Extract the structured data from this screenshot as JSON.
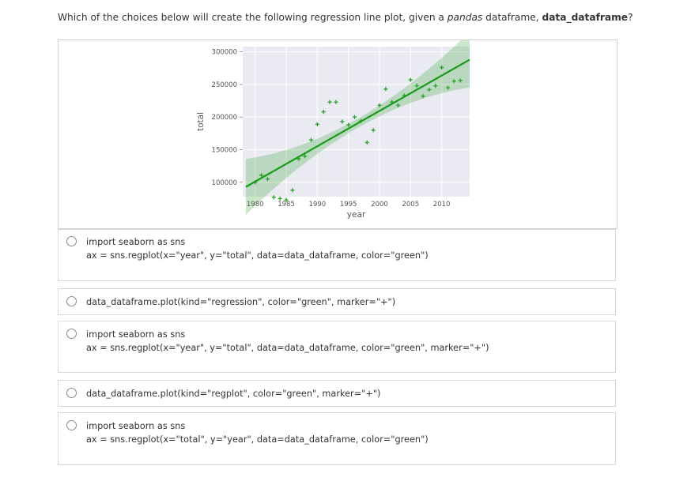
{
  "question": {
    "part1": "Which of the choices below will create the following regression line plot, given a ",
    "em": "pandas",
    "part2": " dataframe, ",
    "bold": "data_dataframe",
    "part3": "?"
  },
  "chart_data": {
    "type": "scatter",
    "xlabel": "year",
    "ylabel": "total",
    "xticks": [
      1980,
      1985,
      1990,
      1995,
      2000,
      2005,
      2010
    ],
    "yticks": [
      100000,
      150000,
      200000,
      250000,
      300000
    ],
    "xlim": [
      1978,
      2014.5
    ],
    "ylim": [
      78000,
      308000
    ],
    "marker": "+",
    "color": "#2ca02c",
    "regression_line": {
      "x": [
        1978.5,
        2014.5
      ],
      "y": [
        93000,
        288000
      ]
    },
    "points": [
      {
        "x": 1980,
        "y": 100000
      },
      {
        "x": 1981,
        "y": 111000
      },
      {
        "x": 1982,
        "y": 105000
      },
      {
        "x": 1983,
        "y": 77000
      },
      {
        "x": 1984,
        "y": 75000
      },
      {
        "x": 1985,
        "y": 73000
      },
      {
        "x": 1986,
        "y": 88000
      },
      {
        "x": 1987,
        "y": 136000
      },
      {
        "x": 1988,
        "y": 140000
      },
      {
        "x": 1989,
        "y": 165000
      },
      {
        "x": 1990,
        "y": 189000
      },
      {
        "x": 1991,
        "y": 208000
      },
      {
        "x": 1992,
        "y": 223000
      },
      {
        "x": 1993,
        "y": 223000
      },
      {
        "x": 1994,
        "y": 193000
      },
      {
        "x": 1995,
        "y": 188000
      },
      {
        "x": 1996,
        "y": 200000
      },
      {
        "x": 1997,
        "y": 194000
      },
      {
        "x": 1998,
        "y": 161000
      },
      {
        "x": 1999,
        "y": 180000
      },
      {
        "x": 2000,
        "y": 218000
      },
      {
        "x": 2001,
        "y": 243000
      },
      {
        "x": 2002,
        "y": 223000
      },
      {
        "x": 2003,
        "y": 218000
      },
      {
        "x": 2004,
        "y": 233000
      },
      {
        "x": 2005,
        "y": 257000
      },
      {
        "x": 2006,
        "y": 248000
      },
      {
        "x": 2007,
        "y": 232000
      },
      {
        "x": 2008,
        "y": 242000
      },
      {
        "x": 2009,
        "y": 248000
      },
      {
        "x": 2010,
        "y": 276000
      },
      {
        "x": 2011,
        "y": 245000
      },
      {
        "x": 2012,
        "y": 255000
      },
      {
        "x": 2013,
        "y": 256000
      }
    ]
  },
  "options": [
    {
      "lines": [
        "import seaborn as sns",
        "ax = sns.regplot(x=\"year\", y=\"total\", data=data_dataframe, color=\"green\")"
      ]
    },
    {
      "lines": [
        "data_dataframe.plot(kind=\"regression\", color=\"green\", marker=\"+\")"
      ]
    },
    {
      "lines": [
        "import seaborn as sns",
        "ax = sns.regplot(x=\"year\", y=\"total\", data=data_dataframe, color=\"green\", marker=\"+\")"
      ]
    },
    {
      "lines": [
        "data_dataframe.plot(kind=\"regplot\", color=\"green\", marker=\"+\")"
      ]
    },
    {
      "lines": [
        "import seaborn as sns",
        "ax = sns.regplot(x=\"total\", y=\"year\", data=data_dataframe, color=\"green\")"
      ]
    }
  ]
}
